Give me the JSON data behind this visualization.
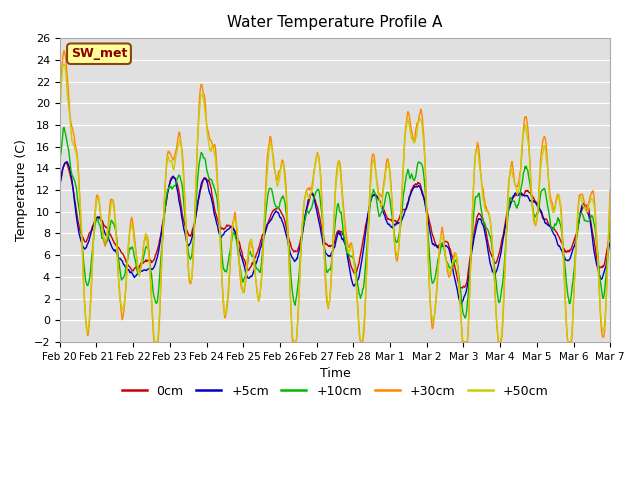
{
  "title": "Water Temperature Profile A",
  "xlabel": "Time",
  "ylabel": "Temperature (C)",
  "ylim": [
    -2,
    26
  ],
  "yticks": [
    -2,
    0,
    2,
    4,
    6,
    8,
    10,
    12,
    14,
    16,
    18,
    20,
    22,
    24,
    26
  ],
  "x_labels": [
    "Feb 20",
    "Feb 21",
    "Feb 22",
    "Feb 23",
    "Feb 24",
    "Feb 25",
    "Feb 26",
    "Feb 27",
    "Feb 28",
    "Mar 1",
    "Mar 2",
    "Mar 3",
    "Mar 4",
    "Mar 5",
    "Mar 6",
    "Mar 7"
  ],
  "annotation_text": "SW_met",
  "annotation_color": "#8B0000",
  "annotation_bg": "#FFFF99",
  "annotation_border": "#8B4513",
  "background_color": "#E0E0E0",
  "grid_color": "#FFFFFF",
  "legend_colors": [
    "#CC0000",
    "#0000CC",
    "#00BB00",
    "#FF8800",
    "#CCCC00"
  ],
  "legend_labels": [
    "0cm",
    "+5cm",
    "+10cm",
    "+30cm",
    "+50cm"
  ]
}
